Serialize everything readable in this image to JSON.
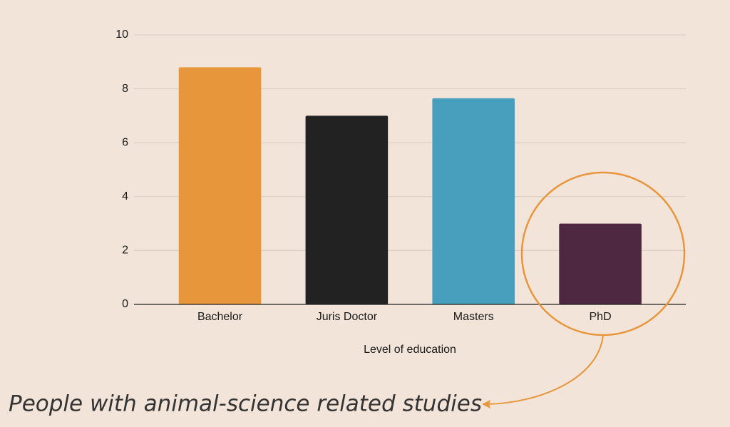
{
  "chart_data": {
    "type": "bar",
    "categories": [
      "Bachelor",
      "Juris Doctor",
      "Masters",
      "PhD"
    ],
    "values": [
      8.8,
      7,
      7.65,
      3
    ],
    "colors": [
      "#e8963c",
      "#222222",
      "#479fbd",
      "#4d2840"
    ],
    "x_label": "Level of education",
    "ylim": [
      0,
      10
    ],
    "yticks": [
      0,
      2,
      4,
      6,
      8,
      10
    ],
    "grid": true,
    "annotation": "People with animal-science related studies"
  }
}
